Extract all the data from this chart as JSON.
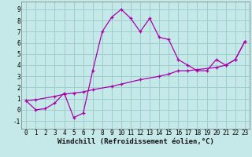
{
  "bg_color": "#c5e8e8",
  "grid_color": "#9ecece",
  "line_color": "#aa00aa",
  "xlim": [
    -0.5,
    23.5
  ],
  "ylim": [
    -1.7,
    9.7
  ],
  "xticks": [
    0,
    1,
    2,
    3,
    4,
    5,
    6,
    7,
    8,
    9,
    10,
    11,
    12,
    13,
    14,
    15,
    16,
    17,
    18,
    19,
    20,
    21,
    22,
    23
  ],
  "yticks": [
    -1,
    0,
    1,
    2,
    3,
    4,
    5,
    6,
    7,
    8,
    9
  ],
  "xlabel": "Windchill (Refroidissement éolien,°C)",
  "series1_x": [
    0,
    1,
    2,
    3,
    4,
    5,
    6,
    7,
    8,
    9,
    10,
    11,
    12,
    13,
    14,
    15,
    16,
    17,
    18,
    19,
    20,
    21,
    22,
    23
  ],
  "series1_y": [
    0.8,
    0.0,
    0.1,
    0.6,
    1.5,
    -0.7,
    -0.3,
    3.5,
    7.0,
    8.3,
    9.0,
    8.2,
    7.0,
    8.2,
    6.5,
    6.3,
    4.5,
    4.0,
    3.5,
    3.5,
    4.5,
    4.0,
    4.5,
    6.1
  ],
  "series2_x": [
    0,
    1,
    3,
    4,
    5,
    6,
    7,
    9,
    10,
    12,
    14,
    15,
    16,
    17,
    18,
    20,
    21,
    22,
    23
  ],
  "series2_y": [
    0.8,
    0.9,
    1.2,
    1.4,
    1.5,
    1.6,
    1.8,
    2.1,
    2.3,
    2.7,
    3.0,
    3.2,
    3.5,
    3.5,
    3.6,
    3.8,
    4.0,
    4.5,
    6.1
  ],
  "tick_fontsize": 5.5,
  "xlabel_fontsize": 6.5
}
